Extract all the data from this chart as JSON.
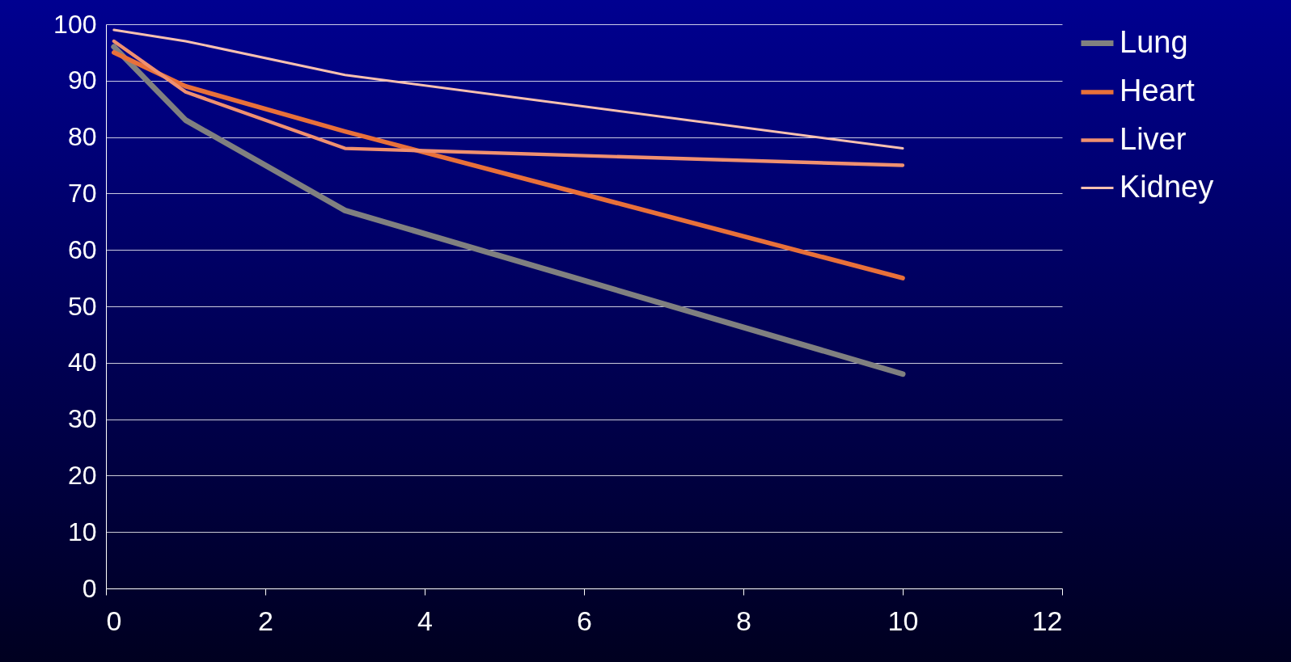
{
  "chart_data": {
    "type": "line",
    "x": [
      0.1,
      1,
      3,
      10
    ],
    "series": [
      {
        "name": "Lung",
        "color": "#808080",
        "values": [
          96,
          83,
          67,
          38
        ]
      },
      {
        "name": "Heart",
        "color": "#e8703a",
        "values": [
          95,
          89,
          81,
          55
        ]
      },
      {
        "name": "Liver",
        "color": "#f09070",
        "values": [
          97,
          88,
          78,
          75
        ]
      },
      {
        "name": "Kidney",
        "color": "#f8c0b0",
        "values": [
          99,
          97,
          91,
          78
        ]
      }
    ],
    "xlim": [
      0,
      12
    ],
    "xticks": [
      0,
      2,
      4,
      6,
      8,
      10,
      12
    ],
    "ylim": [
      0,
      100
    ],
    "yticks": [
      0,
      10,
      20,
      30,
      40,
      50,
      60,
      70,
      80,
      90,
      100
    ],
    "grid": "y",
    "legend": "right",
    "marker": "none",
    "line_style": "solid"
  }
}
